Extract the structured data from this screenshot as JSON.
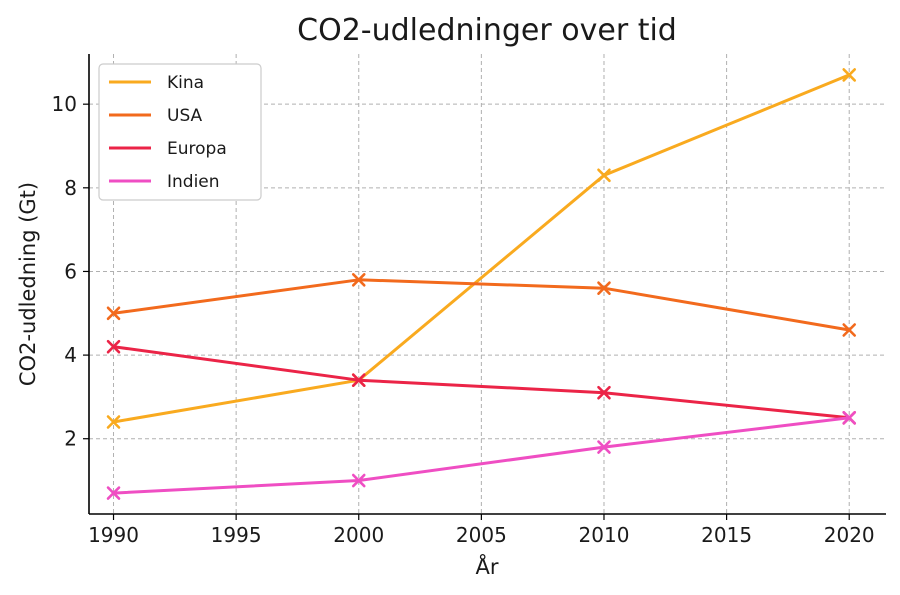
{
  "chart_data": {
    "type": "line",
    "title": "CO2-udledninger over tid",
    "xlabel": "År",
    "ylabel": "CO2-udledning (Gt)",
    "x": [
      1990,
      2000,
      2010,
      2020
    ],
    "xlim": [
      1989,
      2021.5
    ],
    "ylim": [
      0.2,
      11.2
    ],
    "xticks": [
      1990,
      1995,
      2000,
      2005,
      2010,
      2015,
      2020
    ],
    "yticks": [
      2,
      4,
      6,
      8,
      10
    ],
    "grid": true,
    "legend_position": "top-left",
    "marker": "x",
    "series": [
      {
        "name": "Kina",
        "color": "#F9AA1F",
        "values": [
          2.4,
          3.4,
          8.3,
          10.7
        ]
      },
      {
        "name": "USA",
        "color": "#F26A1D",
        "values": [
          5.0,
          5.8,
          5.6,
          4.6
        ]
      },
      {
        "name": "Europa",
        "color": "#EB2447",
        "values": [
          4.2,
          3.4,
          3.1,
          2.5
        ]
      },
      {
        "name": "Indien",
        "color": "#EF4EC3",
        "values": [
          0.7,
          1.0,
          1.8,
          2.5
        ]
      }
    ]
  }
}
